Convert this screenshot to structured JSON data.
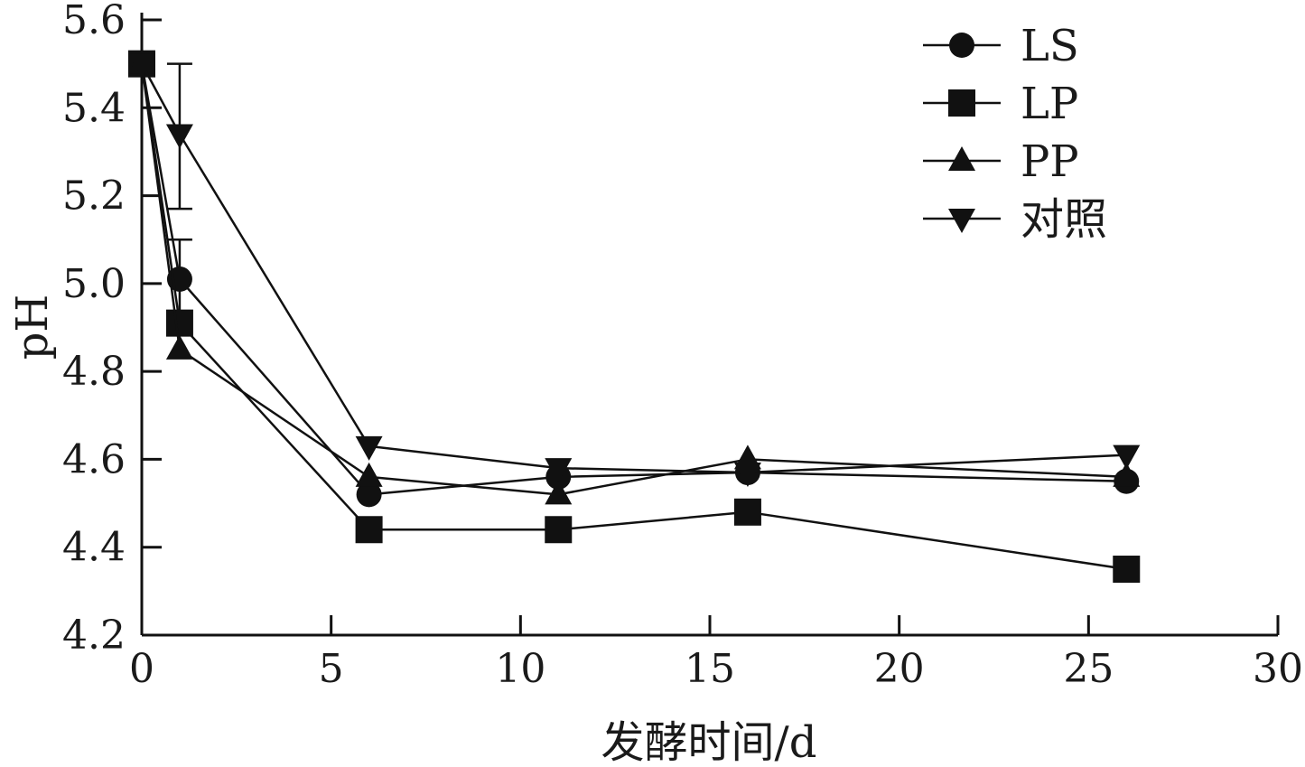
{
  "chart_data": {
    "type": "line",
    "title": "",
    "xlabel": "发酵时间/d",
    "ylabel": "pH",
    "xlim": [
      0,
      30
    ],
    "ylim": [
      4.2,
      5.6
    ],
    "xticks": [
      0,
      5,
      10,
      15,
      20,
      25,
      30
    ],
    "xtick_labels": [
      "0",
      "5",
      "10",
      "15",
      "20",
      "25",
      "30"
    ],
    "yticks": [
      4.2,
      4.4,
      4.6,
      4.8,
      5.0,
      5.2,
      5.4,
      5.6
    ],
    "ytick_labels": [
      "4.2",
      "4.4",
      "4.6",
      "4.8",
      "5.0",
      "5.2",
      "5.4",
      "5.6"
    ],
    "grid": false,
    "legend_position": "top-right",
    "series": [
      {
        "name": "LS",
        "marker": "circle",
        "x": [
          0,
          1,
          6,
          11,
          16,
          26
        ],
        "y": [
          5.5,
          5.01,
          4.52,
          4.56,
          4.57,
          4.55
        ]
      },
      {
        "name": "LP",
        "marker": "square",
        "x": [
          0,
          1,
          6,
          11,
          16,
          26
        ],
        "y": [
          5.5,
          4.91,
          4.44,
          4.44,
          4.48,
          4.35
        ]
      },
      {
        "name": "PP",
        "marker": "triangle-up",
        "x": [
          0,
          1,
          6,
          11,
          16,
          26
        ],
        "y": [
          5.5,
          4.85,
          4.56,
          4.52,
          4.6,
          4.56
        ]
      },
      {
        "name": "对照",
        "marker": "triangle-down",
        "x": [
          0,
          1,
          6,
          11,
          16,
          26
        ],
        "y": [
          5.5,
          5.34,
          4.63,
          4.58,
          4.57,
          4.61
        ]
      }
    ],
    "error_bars": [
      {
        "series": "对照",
        "x": 1,
        "low": 5.17,
        "high": 5.5
      },
      {
        "series": "LS",
        "x": 1,
        "low": 4.93,
        "high": 5.1
      }
    ],
    "colors": {
      "line": "#111111",
      "marker": "#111111",
      "axis": "#111111"
    }
  }
}
